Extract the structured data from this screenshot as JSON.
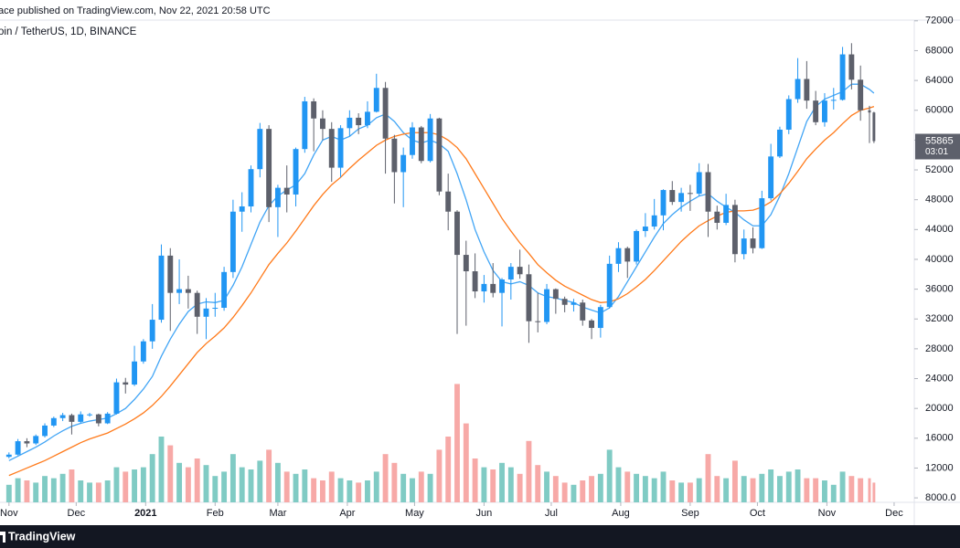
{
  "chart_data": {
    "type": "candlestick",
    "published": "ace published on TradingView.com, Nov 22, 2021 20:58 UTC",
    "symbol": "oin / TetherUS, 1D, BINANCE",
    "footer_brand": "TradingView",
    "countdown": "03:01",
    "grid": false,
    "x": [
      0,
      4,
      8,
      12,
      16,
      20,
      24,
      28,
      32,
      36,
      40,
      44,
      48,
      52,
      56,
      60,
      64,
      68,
      72,
      76,
      80,
      84,
      88,
      92,
      96,
      100,
      104,
      108,
      112,
      116,
      120,
      124,
      128,
      132,
      136,
      140,
      144,
      148,
      152,
      156,
      160,
      164,
      168,
      172,
      176,
      180,
      184,
      188,
      192,
      196,
      200,
      204,
      208,
      212,
      216,
      220,
      224,
      228,
      232,
      236,
      240,
      244,
      248,
      252,
      256,
      260,
      264,
      268,
      272,
      276,
      280,
      284,
      288,
      292,
      296,
      300,
      304,
      308,
      312,
      316,
      320,
      324,
      328,
      332,
      336,
      340,
      344,
      348,
      352,
      356,
      360,
      364,
      368,
      372,
      376,
      380,
      384,
      386
    ],
    "xlim": [
      -4,
      404
    ],
    "xticks": [
      {
        "value": 0,
        "label": "Nov"
      },
      {
        "value": 30,
        "label": "Dec"
      },
      {
        "value": 61,
        "label": "2021"
      },
      {
        "value": 92,
        "label": "Feb"
      },
      {
        "value": 120,
        "label": "Mar"
      },
      {
        "value": 151,
        "label": "Apr"
      },
      {
        "value": 181,
        "label": "May"
      },
      {
        "value": 212,
        "label": "Jun"
      },
      {
        "value": 242,
        "label": "Jul"
      },
      {
        "value": 273,
        "label": "Aug"
      },
      {
        "value": 304,
        "label": "Sep"
      },
      {
        "value": 334,
        "label": "Oct"
      },
      {
        "value": 365,
        "label": "Nov"
      },
      {
        "value": 395,
        "label": "Dec"
      }
    ],
    "ylim": [
      7400,
      72100
    ],
    "yticks": [
      72000,
      68000,
      64000,
      60000,
      56000,
      52000,
      48000,
      44000,
      40000,
      36000,
      32000,
      28000,
      24000,
      20000,
      16000,
      12000,
      {
        "value": 8000,
        "label": "8000.0"
      }
    ],
    "y2lim": [
      0,
      1100
    ],
    "candles": {
      "up_color": "#2196f3",
      "down_color": "#5d606b",
      "values": [
        [
          13500,
          14100,
          13300,
          13800
        ],
        [
          13800,
          15900,
          13700,
          15600
        ],
        [
          15600,
          16000,
          14800,
          15300
        ],
        [
          15300,
          16500,
          15100,
          16300
        ],
        [
          16300,
          18000,
          16100,
          17700
        ],
        [
          17700,
          18900,
          17500,
          18700
        ],
        [
          18700,
          19400,
          18300,
          19100
        ],
        [
          19100,
          19300,
          16500,
          18200
        ],
        [
          18200,
          19600,
          18000,
          19200
        ],
        [
          19200,
          19400,
          18900,
          19200
        ],
        [
          19200,
          19300,
          17600,
          18000
        ],
        [
          18000,
          19500,
          17900,
          19300
        ],
        [
          19300,
          24000,
          19200,
          23500
        ],
        [
          23500,
          24100,
          22000,
          23200
        ],
        [
          23200,
          28400,
          23000,
          26300
        ],
        [
          26300,
          29300,
          26000,
          29000
        ],
        [
          29000,
          34000,
          28000,
          31900
        ],
        [
          31900,
          42000,
          31500,
          40500
        ],
        [
          40500,
          41500,
          30400,
          35500
        ],
        [
          35500,
          40000,
          34000,
          36000
        ],
        [
          36000,
          37800,
          33400,
          35500
        ],
        [
          35500,
          35800,
          30000,
          32300
        ],
        [
          32300,
          34800,
          29300,
          33400
        ],
        [
          33400,
          35500,
          32300,
          33500
        ],
        [
          33500,
          39000,
          33100,
          38300
        ],
        [
          38300,
          48000,
          37500,
          46400
        ],
        [
          46400,
          49000,
          43700,
          47100
        ],
        [
          47100,
          52600,
          46300,
          52100
        ],
        [
          52100,
          58300,
          51000,
          57500
        ],
        [
          57500,
          58000,
          45000,
          47000
        ],
        [
          47000,
          50000,
          43000,
          49600
        ],
        [
          49600,
          52600,
          46300,
          48700
        ],
        [
          48700,
          55000,
          47100,
          54800
        ],
        [
          54800,
          61800,
          54300,
          61200
        ],
        [
          61200,
          61600,
          54500,
          58900
        ],
        [
          58900,
          60000,
          56000,
          57500
        ],
        [
          57500,
          58400,
          50400,
          52300
        ],
        [
          52300,
          58000,
          51000,
          57600
        ],
        [
          57600,
          60000,
          56500,
          59000
        ],
        [
          59000,
          59600,
          56800,
          58000
        ],
        [
          58000,
          61200,
          57600,
          59800
        ],
        [
          59800,
          64900,
          59700,
          63000
        ],
        [
          63000,
          63800,
          51500,
          56200
        ],
        [
          56200,
          56700,
          47500,
          51700
        ],
        [
          51700,
          55000,
          47000,
          54000
        ],
        [
          54000,
          58400,
          53500,
          57700
        ],
        [
          57700,
          57900,
          52900,
          53200
        ],
        [
          53200,
          59500,
          53000,
          58900
        ],
        [
          58900,
          59000,
          48600,
          49100
        ],
        [
          49100,
          51500,
          43900,
          46400
        ],
        [
          46400,
          46600,
          30000,
          40600
        ],
        [
          40600,
          42500,
          31100,
          38400
        ],
        [
          38400,
          40800,
          34800,
          35700
        ],
        [
          35700,
          37900,
          34200,
          36700
        ],
        [
          36700,
          39500,
          34900,
          35500
        ],
        [
          35500,
          37500,
          31000,
          37300
        ],
        [
          37300,
          39500,
          34600,
          39000
        ],
        [
          39000,
          41300,
          37400,
          38000
        ],
        [
          38000,
          39300,
          28800,
          31700
        ],
        [
          31700,
          35500,
          30200,
          31600
        ],
        [
          31600,
          36700,
          31300,
          36000
        ],
        [
          36000,
          36100,
          32700,
          34700
        ],
        [
          34700,
          35000,
          32900,
          33900
        ],
        [
          33900,
          34700,
          33000,
          34200
        ],
        [
          34200,
          34600,
          31100,
          31800
        ],
        [
          31800,
          32000,
          29300,
          30800
        ],
        [
          30800,
          33900,
          29500,
          33600
        ],
        [
          33600,
          40500,
          33400,
          39400
        ],
        [
          39400,
          42300,
          38300,
          41500
        ],
        [
          41500,
          41700,
          37500,
          39700
        ],
        [
          39700,
          44000,
          39300,
          43800
        ],
        [
          43800,
          46200,
          43000,
          44400
        ],
        [
          44400,
          48100,
          44000,
          45900
        ],
        [
          45900,
          49400,
          43900,
          49300
        ],
        [
          49300,
          50500,
          47300,
          47700
        ],
        [
          47700,
          49600,
          46400,
          48900
        ],
        [
          48900,
          50000,
          46500,
          48800
        ],
        [
          48800,
          52900,
          48500,
          51700
        ],
        [
          51700,
          52800,
          43000,
          46400
        ],
        [
          46400,
          47200,
          44000,
          44900
        ],
        [
          44900,
          48800,
          44600,
          47300
        ],
        [
          47300,
          48000,
          39600,
          40700
        ],
        [
          40700,
          44000,
          40000,
          42800
        ],
        [
          42800,
          44300,
          40800,
          41500
        ],
        [
          41500,
          49200,
          41400,
          48200
        ],
        [
          48200,
          55500,
          47900,
          53800
        ],
        [
          53800,
          57800,
          53600,
          57400
        ],
        [
          57400,
          62000,
          56800,
          61500
        ],
        [
          61500,
          67000,
          61000,
          64200
        ],
        [
          64200,
          66600,
          60200,
          61300
        ],
        [
          61300,
          62600,
          58000,
          58400
        ],
        [
          58400,
          62300,
          57800,
          61300
        ],
        [
          61300,
          63000,
          60100,
          61400
        ],
        [
          61400,
          68500,
          61300,
          67500
        ],
        [
          67500,
          69000,
          62800,
          64100
        ],
        [
          64100,
          66000,
          58600,
          60000
        ],
        [
          60000,
          60600,
          55600,
          59700
        ],
        [
          59700,
          59800,
          55600,
          55865
        ]
      ]
    },
    "volume": {
      "axis": "y2",
      "up_color": "#80cbc4",
      "down_color": "#f7a9a7",
      "values": [
        40,
        55,
        50,
        45,
        60,
        55,
        65,
        75,
        50,
        45,
        45,
        50,
        80,
        70,
        75,
        80,
        110,
        150,
        130,
        90,
        80,
        100,
        85,
        60,
        70,
        110,
        80,
        75,
        95,
        120,
        90,
        70,
        65,
        75,
        55,
        50,
        70,
        55,
        50,
        45,
        50,
        70,
        110,
        90,
        65,
        55,
        70,
        65,
        120,
        150,
        270,
        180,
        100,
        80,
        75,
        90,
        80,
        65,
        140,
        85,
        70,
        60,
        45,
        40,
        50,
        60,
        65,
        120,
        80,
        70,
        65,
        60,
        55,
        70,
        50,
        45,
        45,
        55,
        110,
        60,
        55,
        95,
        60,
        55,
        65,
        75,
        60,
        70,
        75,
        55,
        55,
        50,
        40,
        70,
        60,
        55,
        55,
        45
      ]
    },
    "moving_averages": [
      {
        "color": "#42a5f5",
        "values": [
          13000,
          13600,
          14200,
          14800,
          15500,
          16300,
          17000,
          17600,
          18000,
          18300,
          18500,
          18700,
          19300,
          20000,
          21200,
          22600,
          24300,
          27000,
          29300,
          31300,
          33000,
          34000,
          34300,
          34200,
          34500,
          36500,
          39000,
          42000,
          45000,
          47200,
          48500,
          49300,
          50000,
          51500,
          54000,
          56000,
          56500,
          56000,
          56500,
          57500,
          58000,
          59000,
          59500,
          58500,
          57000,
          56000,
          55600,
          56000,
          55500,
          54500,
          51500,
          48000,
          44000,
          41000,
          38500,
          37000,
          36700,
          37000,
          36500,
          35500,
          35000,
          34800,
          34500,
          34200,
          33600,
          33200,
          32800,
          33500,
          35000,
          37000,
          39000,
          41000,
          43000,
          44800,
          46000,
          47000,
          47800,
          48500,
          48800,
          47800,
          47000,
          46300,
          45300,
          44500,
          44500,
          46000,
          48500,
          51500,
          55000,
          58500,
          60500,
          61500,
          62000,
          62500,
          63500,
          63500,
          62800,
          62300
        ]
      },
      {
        "color": "#ff7a1a",
        "values": [
          11000,
          11500,
          12000,
          12500,
          13000,
          13600,
          14200,
          14800,
          15400,
          15900,
          16300,
          16700,
          17300,
          17900,
          18600,
          19400,
          20400,
          21600,
          23000,
          24500,
          26000,
          27500,
          28700,
          29700,
          30800,
          32200,
          33800,
          35500,
          37400,
          39300,
          40800,
          42200,
          43800,
          45500,
          47200,
          48700,
          50000,
          51000,
          52200,
          53300,
          54300,
          55300,
          56000,
          56500,
          56800,
          57000,
          57000,
          57000,
          56700,
          56000,
          55000,
          53500,
          51500,
          49500,
          47500,
          45500,
          43800,
          42200,
          40800,
          39300,
          38200,
          37200,
          36400,
          35800,
          35200,
          34600,
          34200,
          34300,
          34700,
          35400,
          36300,
          37300,
          38500,
          39800,
          41100,
          42400,
          43500,
          44500,
          45200,
          45800,
          46300,
          46500,
          46500,
          46600,
          47000,
          47700,
          48800,
          50200,
          51800,
          53500,
          54800,
          56000,
          57000,
          58200,
          59300,
          60000,
          60300,
          60500
        ]
      }
    ]
  }
}
